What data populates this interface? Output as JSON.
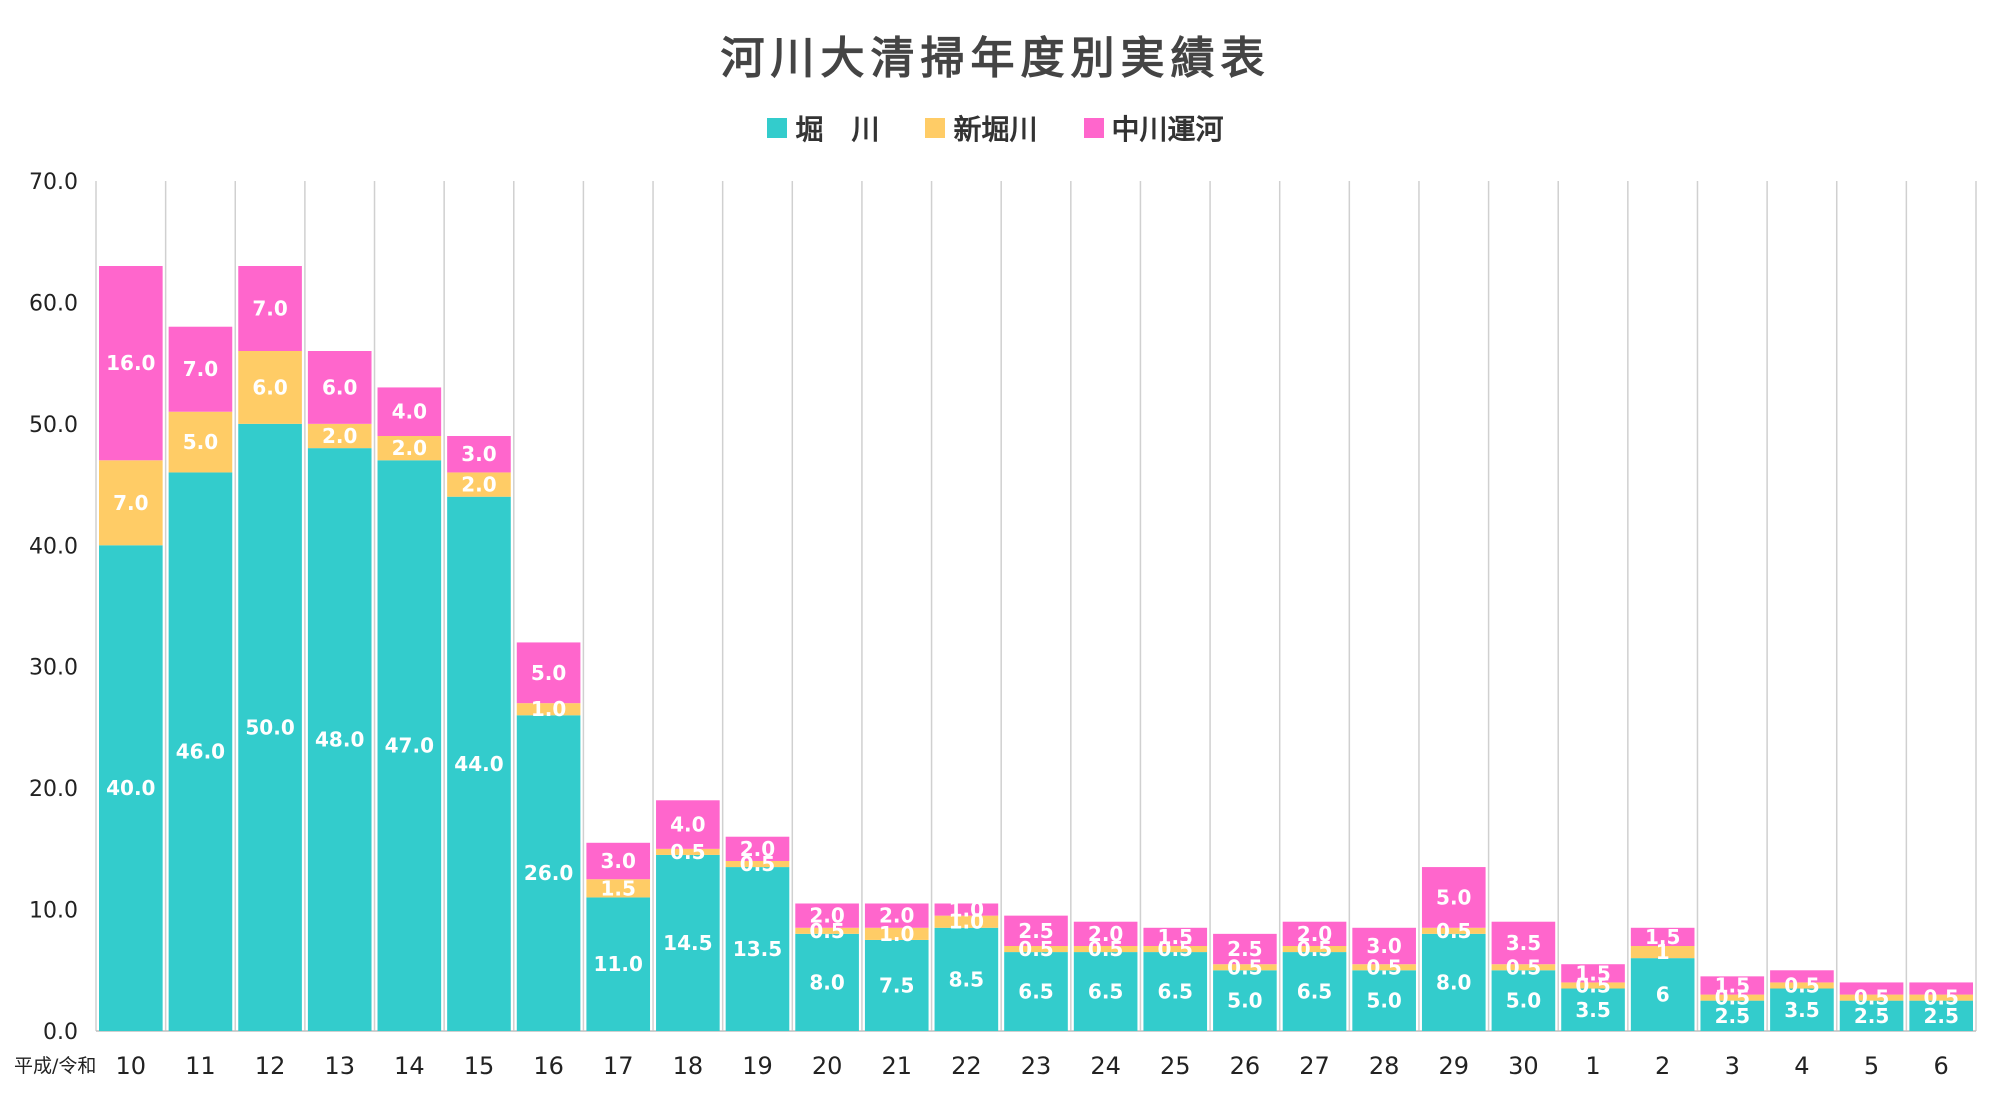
{
  "chart_data": {
    "type": "bar",
    "stacked": true,
    "title": "河川大清掃年度別実績表",
    "era_label": "平成/令和",
    "categories": [
      "10",
      "11",
      "12",
      "13",
      "14",
      "15",
      "16",
      "17",
      "18",
      "19",
      "20",
      "21",
      "22",
      "23",
      "24",
      "25",
      "26",
      "27",
      "28",
      "29",
      "30",
      "1",
      "2",
      "3",
      "4",
      "5",
      "6"
    ],
    "series": [
      {
        "name": "堀　川",
        "color": "#33CCCC",
        "values": [
          40,
          46,
          50,
          48,
          47,
          44,
          26,
          11,
          14.5,
          13.5,
          8,
          7.5,
          8.5,
          6.5,
          6.5,
          6.5,
          5,
          6.5,
          5,
          8,
          5,
          3.5,
          6,
          2.5,
          3.5,
          2.5,
          2.5
        ],
        "labels": [
          "40.0",
          "46.0",
          "50.0",
          "48.0",
          "47.0",
          "44.0",
          "26.0",
          "11.0",
          "14.5",
          "13.5",
          "8.0",
          "7.5",
          "8.5",
          "6.5",
          "6.5",
          "6.5",
          "5.0",
          "6.5",
          "5.0",
          "8.0",
          "5.0",
          "3.5",
          "6",
          "2.5",
          "3.5",
          "2.5",
          "2.5"
        ]
      },
      {
        "name": "新堀川",
        "color": "#FFCC66",
        "values": [
          7,
          5,
          6,
          2,
          2,
          2,
          1,
          1.5,
          0.5,
          0.5,
          0.5,
          1,
          1,
          0.5,
          0.5,
          0.5,
          0.5,
          0.5,
          0.5,
          0.5,
          0.5,
          0.5,
          1,
          0.5,
          0.5,
          0.5,
          0.5
        ],
        "labels": [
          "7.0",
          "5.0",
          "6.0",
          "2.0",
          "2.0",
          "2.0",
          "1.0",
          "1.5",
          "0.5",
          "0.5",
          "0.5",
          "1.0",
          "1.0",
          "0.5",
          "0.5",
          "0.5",
          "0.5",
          "0.5",
          "0.5",
          "0.5",
          "0.5",
          "0.5",
          "1",
          "0.5",
          "0.5",
          "0.5",
          "0.5"
        ]
      },
      {
        "name": "中川運河",
        "color": "#FF66CC",
        "values": [
          16,
          7,
          7,
          6,
          4,
          3,
          5,
          3,
          4,
          2,
          2,
          2,
          1,
          2.5,
          2,
          1.5,
          2.5,
          2,
          3,
          5,
          3.5,
          1.5,
          1.5,
          1.5,
          1,
          1,
          1
        ],
        "labels": [
          "16.0",
          "7.0",
          "7.0",
          "6.0",
          "4.0",
          "3.0",
          "5.0",
          "3.0",
          "4.0",
          "2.0",
          "2.0",
          "2.0",
          "1.0",
          "2.5",
          "2.0",
          "1.5",
          "2.5",
          "2.0",
          "3.0",
          "5.0",
          "3.5",
          "1.5",
          "1.5",
          "1.5",
          "",
          "",
          ""
        ]
      }
    ],
    "ylim": [
      0,
      70
    ],
    "yticks": [
      "0.0",
      "10.0",
      "20.0",
      "30.0",
      "40.0",
      "50.0",
      "60.0",
      "70.0"
    ],
    "grid": "vertical",
    "legend_position": "top"
  }
}
